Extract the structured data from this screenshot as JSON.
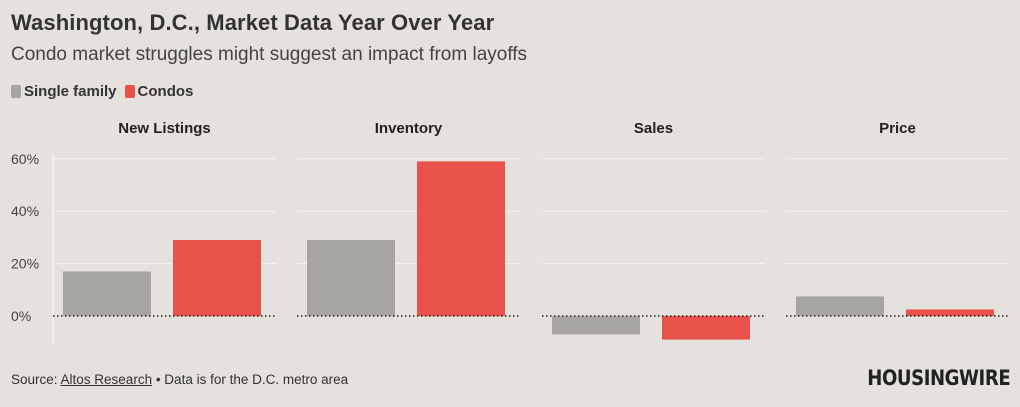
{
  "title": "Washington, D.C., Market Data Year Over Year",
  "subtitle": "Condo market struggles might suggest an impact from layoffs",
  "legend": {
    "single_family": "Single family",
    "condos": "Condos"
  },
  "colors": {
    "single_family": "#a6a5a2",
    "condos": "#e8524a",
    "background": "#e5e1dc",
    "gridline": "#f3f1ee"
  },
  "chart_data": {
    "type": "bar",
    "ylabel": "",
    "ylim": [
      -10,
      62
    ],
    "yticks": [
      0,
      20,
      40,
      60
    ],
    "ytick_labels": [
      "0%",
      "20%",
      "40%",
      "60%"
    ],
    "panels": [
      "New Listings",
      "Inventory",
      "Sales",
      "Price"
    ],
    "series": [
      {
        "name": "Single family",
        "values": [
          17,
          29,
          -7,
          7.5
        ]
      },
      {
        "name": "Condos",
        "values": [
          29,
          59,
          -9,
          2.5
        ]
      }
    ]
  },
  "source": {
    "prefix": "Source: ",
    "link": "Altos Research",
    "suffix": " • Data is for the D.C. metro area"
  },
  "brand": "HOUSINGWIRE"
}
